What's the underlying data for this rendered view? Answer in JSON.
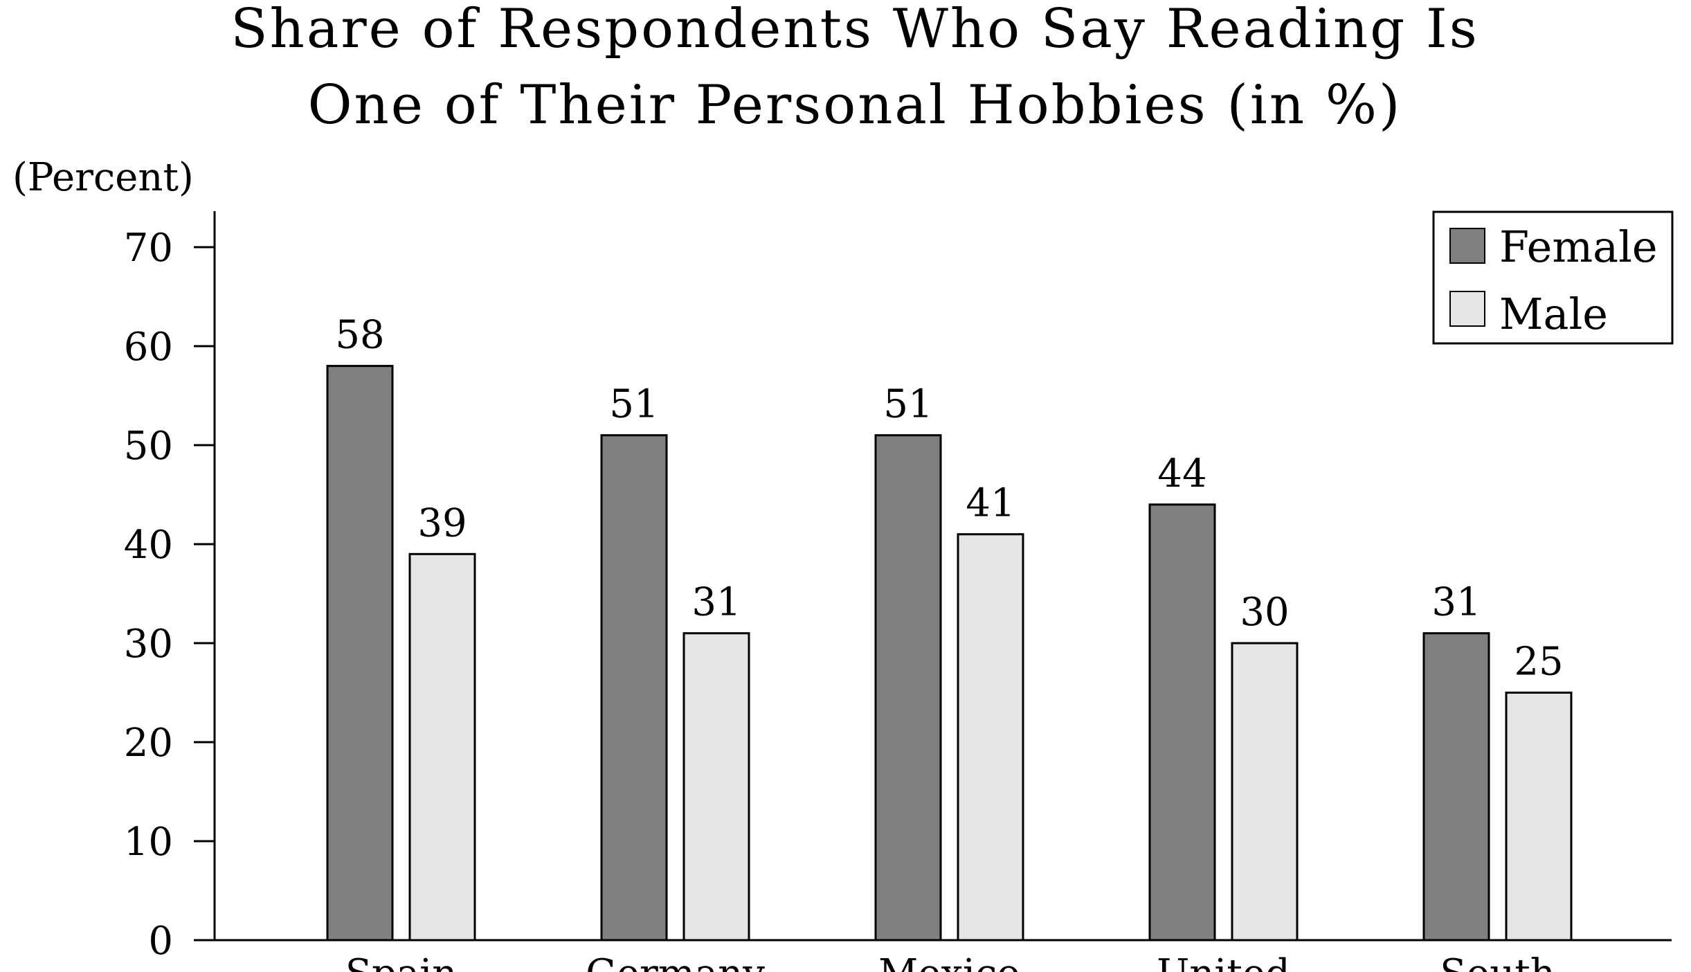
{
  "chart_data": {
    "type": "bar",
    "title_lines": [
      "Share of Respondents Who Say Reading Is",
      "One of Their Personal Hobbies (in %)"
    ],
    "ylabel": "(Percent)",
    "ylim": [
      0,
      70
    ],
    "yticks": [
      0,
      10,
      20,
      30,
      40,
      50,
      60,
      70
    ],
    "categories": [
      "Spain",
      "Germany",
      "Mexico",
      "United",
      "South"
    ],
    "series": [
      {
        "name": "Female",
        "values": [
          58,
          51,
          51,
          44,
          31
        ],
        "color": "#808080"
      },
      {
        "name": "Male",
        "values": [
          39,
          31,
          41,
          30,
          25
        ],
        "color": "#e5e5e5"
      }
    ],
    "legend_position": "top-right",
    "grid": false
  }
}
